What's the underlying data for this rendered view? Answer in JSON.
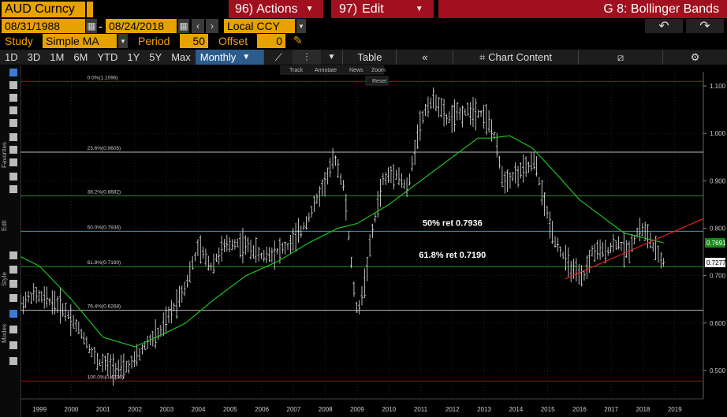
{
  "header": {
    "ticker": "AUD Curncy",
    "actions_num": "96)",
    "actions_label": "Actions",
    "edit_num": "97)",
    "edit_label": "Edit",
    "window_title": "G 8: Bollinger Bands"
  },
  "controls": {
    "start_date": "08/31/1988",
    "dash": "-",
    "end_date": "08/24/2018",
    "currency": "Local CCY",
    "study_label": "Study",
    "study_value": "Simple MA",
    "period_label": "Period",
    "period_value": "50",
    "offset_label": "Offset",
    "offset_value": "0"
  },
  "toolbar": {
    "timeframes": [
      "1D",
      "3D",
      "1M",
      "6M",
      "YTD",
      "1Y",
      "5Y",
      "Max"
    ],
    "frequency": "Monthly",
    "table_label": "Table",
    "chart_content_label": "Chart Content"
  },
  "mini_toolbar": [
    "Track",
    "Annotate",
    "News",
    "Zoom"
  ],
  "reset_label": "Reset",
  "side_labels": [
    "Favorites",
    "Edit",
    "Style",
    "Modes"
  ],
  "colors": {
    "ma_line": "#1fbf1f",
    "trend_line": "#e0202a",
    "price_bars": "#e8e8e8",
    "fib_white": "#bbbbbb",
    "fib_green": "#1f8f1f",
    "fib_cyan": "#3aa0b0",
    "fib_red": "#b01010"
  },
  "chart_data": {
    "type": "line",
    "ylim": [
      0.47,
      1.13
    ],
    "xlim": [
      1998.4,
      2019.9
    ],
    "x_ticks": [
      "1999",
      "2000",
      "2001",
      "2002",
      "2003",
      "2004",
      "2005",
      "2006",
      "2007",
      "2008",
      "2009",
      "2010",
      "2011",
      "2012",
      "2013",
      "2014",
      "2015",
      "2016",
      "2017",
      "2018",
      "2019"
    ],
    "y_ticks": [
      "1.100",
      "1.000",
      "0.900",
      "0.800",
      "0.700",
      "0.600",
      "0.500"
    ],
    "fib_levels": [
      {
        "label": "0.0%(1.1096)",
        "value": 1.1096,
        "color": "#b01010"
      },
      {
        "label": "23.6%(0.9605)",
        "value": 0.9605,
        "color": "#bbbbbb"
      },
      {
        "label": "38.2%(0.8682)",
        "value": 0.8682,
        "color": "#1f8f1f"
      },
      {
        "label": "50.0%(0.7936)",
        "value": 0.7936,
        "color": "#3aa0b0"
      },
      {
        "label": "61.8%(0.7190)",
        "value": 0.719,
        "color": "#1f8f1f"
      },
      {
        "label": "76.4%(0.6268)",
        "value": 0.6268,
        "color": "#bbbbbb"
      },
      {
        "label": "100.0%(0.4776)",
        "value": 0.4776,
        "color": "#b01010"
      }
    ],
    "annotations": [
      {
        "text": "50% ret 0.7936",
        "x": 2012.0,
        "y": 0.805
      },
      {
        "text": "61.8% ret 0.7190",
        "x": 2012.0,
        "y": 0.738
      }
    ],
    "last_values": [
      {
        "label": "0.7691",
        "value": 0.7691,
        "color": "#1fbf1f"
      },
      {
        "label": "0.7277",
        "value": 0.7277,
        "color": "#ffffff"
      }
    ],
    "series": [
      {
        "role": "price",
        "x": [
          1998.4,
          1998.8,
          1999.2,
          1999.6,
          2000.0,
          2000.4,
          2000.8,
          2001.2,
          2001.6,
          2002.0,
          2002.4,
          2002.8,
          2003.2,
          2003.6,
          2004.0,
          2004.4,
          2004.8,
          2005.2,
          2005.6,
          2006.0,
          2006.4,
          2006.8,
          2007.2,
          2007.6,
          2008.0,
          2008.3,
          2008.6,
          2008.85,
          2009.0,
          2009.2,
          2009.5,
          2009.8,
          2010.2,
          2010.6,
          2010.9,
          2011.2,
          2011.5,
          2011.8,
          2012.2,
          2012.6,
          2013.0,
          2013.3,
          2013.6,
          2013.9,
          2014.2,
          2014.6,
          2014.9,
          2015.2,
          2015.5,
          2015.8,
          2016.1,
          2016.4,
          2016.8,
          2017.2,
          2017.5,
          2017.9,
          2018.1,
          2018.4,
          2018.65
        ],
        "y": [
          0.64,
          0.66,
          0.65,
          0.64,
          0.61,
          0.57,
          0.52,
          0.51,
          0.5,
          0.52,
          0.56,
          0.58,
          0.63,
          0.68,
          0.76,
          0.72,
          0.76,
          0.77,
          0.76,
          0.74,
          0.75,
          0.76,
          0.79,
          0.84,
          0.9,
          0.95,
          0.88,
          0.7,
          0.62,
          0.67,
          0.8,
          0.9,
          0.92,
          0.88,
          1.0,
          1.06,
          1.07,
          1.03,
          1.04,
          1.05,
          1.04,
          1.0,
          0.9,
          0.91,
          0.92,
          0.94,
          0.85,
          0.78,
          0.74,
          0.71,
          0.69,
          0.75,
          0.75,
          0.77,
          0.75,
          0.8,
          0.79,
          0.75,
          0.7277
        ]
      },
      {
        "role": "ma50",
        "x": [
          1998.4,
          1999.0,
          2000.0,
          2001.0,
          2002.0,
          2003.0,
          2003.6,
          2004.5,
          2005.5,
          2006.5,
          2007.5,
          2008.4,
          2009.0,
          2010.0,
          2011.0,
          2012.0,
          2012.8,
          2013.2,
          2013.8,
          2014.5,
          2015.2,
          2016.0,
          2016.8,
          2017.4,
          2018.0,
          2018.65
        ],
        "y": [
          0.74,
          0.72,
          0.65,
          0.57,
          0.55,
          0.58,
          0.6,
          0.65,
          0.7,
          0.73,
          0.77,
          0.8,
          0.81,
          0.85,
          0.9,
          0.95,
          0.99,
          0.99,
          0.995,
          0.97,
          0.92,
          0.86,
          0.82,
          0.79,
          0.78,
          0.7691
        ]
      },
      {
        "role": "trendline",
        "x": [
          2015.55,
          2019.9
        ],
        "y": [
          0.693,
          0.82
        ]
      }
    ]
  }
}
